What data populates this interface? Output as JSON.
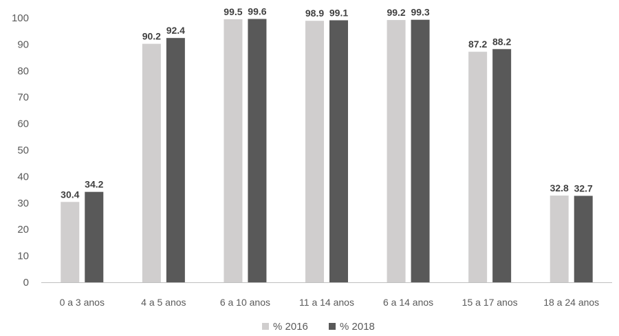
{
  "chart_data": {
    "type": "bar",
    "title": "",
    "xlabel": "",
    "ylabel": "",
    "ylim": [
      0,
      100
    ],
    "yticks": [
      0,
      10,
      20,
      30,
      40,
      50,
      60,
      70,
      80,
      90,
      100
    ],
    "grid": false,
    "legend_position": "bottom",
    "categories": [
      "0 a 3 anos",
      "4 a 5 anos",
      "6 a 10 anos",
      "11 a 14 anos",
      "6 a 14 anos",
      "15 a 17 anos",
      "18 a 24 anos"
    ],
    "series": [
      {
        "name": "% 2016",
        "color": "#d0cece",
        "values": [
          30.4,
          90.2,
          99.5,
          98.9,
          99.2,
          87.2,
          32.8
        ],
        "labels": [
          "30.4",
          "90.2",
          "99.5",
          "98.9",
          "99.2",
          "87.2",
          "32.8"
        ]
      },
      {
        "name": "% 2018",
        "color": "#595959",
        "values": [
          34.2,
          92.4,
          99.6,
          99.1,
          99.3,
          88.2,
          32.7
        ],
        "labels": [
          "34.2",
          "92.4",
          "99.6",
          "99.1",
          "99.3",
          "88.2",
          "32.7"
        ]
      }
    ]
  }
}
